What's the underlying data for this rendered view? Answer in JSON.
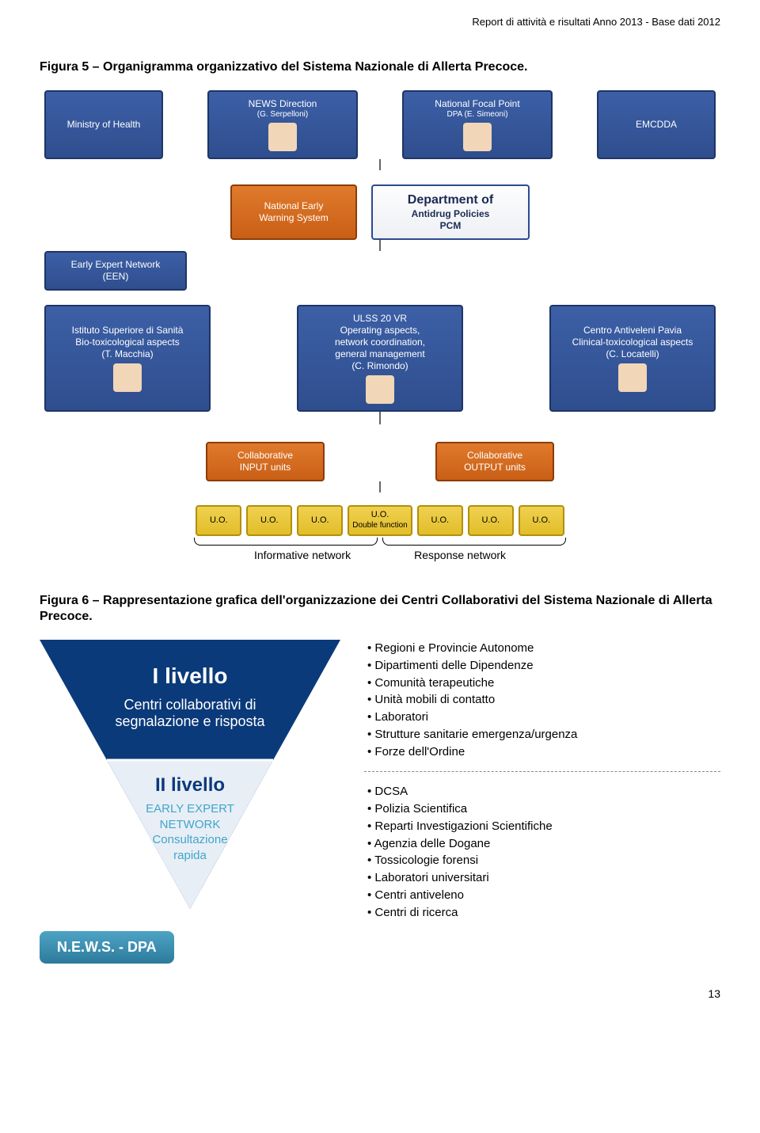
{
  "header_line": "Report di attività e risultati  Anno 2013 - Base dati 2012",
  "fig5_title": "Figura 5 – Organigramma organizzativo del Sistema Nazionale di Allerta Precoce.",
  "fig6_title": "Figura 6 – Rappresentazione grafica dell'organizzazione dei Centri Collaborativi del Sistema Nazionale di Allerta Precoce.",
  "page_number": "13",
  "org": {
    "colors": {
      "blue_bg": "#2f4e8e",
      "blue_border": "#1e3566",
      "orange_bg": "#c95f16",
      "orange_border": "#8c3c06",
      "yellow_bg": "#e2be2a",
      "yellow_border": "#b38f0a",
      "white_bg": "#ffffff",
      "white_border": "#2a4b90",
      "line": "#666666"
    },
    "top_row": [
      {
        "label": "Ministry of Health",
        "color": "blue"
      },
      {
        "label": "NEWS Direction",
        "sub": "(G. Serpelloni)",
        "color": "blue",
        "has_face": true
      },
      {
        "label": "National Focal Point",
        "sub": "DPA (E. Simeoni)",
        "color": "blue",
        "has_face": true
      },
      {
        "label": "EMCDDA",
        "color": "blue"
      }
    ],
    "second_row": [
      {
        "label": "National Early\nWarning System",
        "color": "orange"
      },
      {
        "label": "Department of\nAntidrug Policies\nPCM",
        "color": "white"
      }
    ],
    "een": {
      "label": "Early Expert Network\n(EEN)",
      "color": "blue"
    },
    "third_row": [
      {
        "label": "Istituto Superiore di Sanità\nBio-toxicological aspects\n(T. Macchia)",
        "color": "blue",
        "has_face": true
      },
      {
        "label": "ULSS 20 VR\nOperating aspects,\nnetwork coordination,\ngeneral management\n(C. Rimondo)",
        "color": "blue",
        "has_face": true
      },
      {
        "label": "Centro Antiveleni Pavia\nClinical-toxicological aspects\n(C. Locatelli)",
        "color": "blue",
        "has_face": true
      }
    ],
    "fourth_row": [
      {
        "label": "Collaborative\nINPUT units",
        "color": "orange"
      },
      {
        "label": "Collaborative\nOUTPUT units",
        "color": "orange"
      }
    ],
    "uo_row": [
      {
        "label": "U.O.",
        "color": "yellow"
      },
      {
        "label": "U.O.",
        "color": "yellow"
      },
      {
        "label": "U.O.",
        "color": "yellow"
      },
      {
        "label": "U.O.",
        "sub": "Double function",
        "color": "yellow"
      },
      {
        "label": "U.O.",
        "color": "yellow"
      },
      {
        "label": "U.O.",
        "color": "yellow"
      },
      {
        "label": "U.O.",
        "color": "yellow"
      }
    ],
    "network_labels": {
      "left": "Informative network",
      "right": "Response network"
    }
  },
  "fig6": {
    "triangle": {
      "fill_top": "#0a3a7a",
      "fill_bottom": "#e8eef6",
      "stroke": "#ffffff",
      "level1_title": "I  livello",
      "level1_sub1": "Centri  collaborativi di",
      "level1_sub2": "segnalazione e risposta",
      "level2_title": "II  livello",
      "level2_sub1": "EARLY EXPERT",
      "level2_sub2": "NETWORK",
      "level2_sub3": "Consultazione",
      "level2_sub4": "rapida"
    },
    "news_label": "N.E.W.S. - DPA",
    "bullets_top": [
      "Regioni e Provincie Autonome",
      "Dipartimenti delle Dipendenze",
      "Comunità terapeutiche",
      "Unità mobili di contatto",
      "Laboratori",
      "Strutture sanitarie emergenza/urgenza",
      "Forze dell'Ordine"
    ],
    "bullets_bottom": [
      "DCSA",
      "Polizia Scientifica",
      "Reparti Investigazioni Scientifiche",
      "Agenzia delle Dogane",
      "Tossicologie forensi",
      "Laboratori universitari",
      "Centri antiveleno",
      "Centri di ricerca"
    ]
  }
}
